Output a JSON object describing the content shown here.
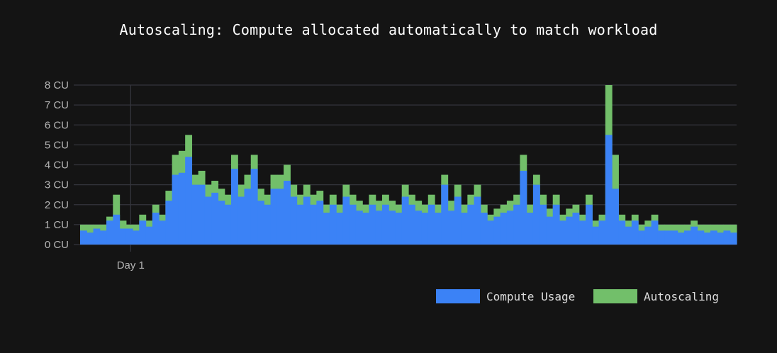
{
  "chart_data": {
    "type": "area",
    "title": "Autoscaling: Compute allocated automatically to match workload",
    "xlabel": "",
    "ylabel": "",
    "ylim": [
      0,
      8
    ],
    "y_ticks": [
      "0 CU",
      "1 CU",
      "2 CU",
      "3 CU",
      "4 CU",
      "5 CU",
      "6 CU",
      "7 CU",
      "8 CU"
    ],
    "x_ticks": [
      {
        "label": "Day 1",
        "index": 7
      }
    ],
    "grid": true,
    "legend_placement": "bottom-right",
    "series": [
      {
        "name": "Compute Usage",
        "color": "#3b82f6",
        "values": [
          0.7,
          0.6,
          0.8,
          0.7,
          1.2,
          1.5,
          0.8,
          0.8,
          0.7,
          1.2,
          0.9,
          1.6,
          1.2,
          2.2,
          3.5,
          3.6,
          4.4,
          3,
          3,
          2.4,
          2.6,
          2.2,
          2,
          3.8,
          2.4,
          2.8,
          3.8,
          2.2,
          2,
          2.8,
          2.8,
          3.2,
          2.4,
          2,
          2.4,
          2,
          2.2,
          1.6,
          2,
          1.6,
          2.4,
          2,
          1.7,
          1.6,
          2,
          1.7,
          2,
          1.7,
          1.6,
          2.4,
          2,
          1.7,
          1.6,
          2,
          1.6,
          3,
          1.7,
          2.4,
          1.6,
          2,
          2.4,
          1.6,
          1.2,
          1.4,
          1.6,
          1.7,
          2,
          3.7,
          1.6,
          3,
          2,
          1.4,
          2,
          1.2,
          1.4,
          1.6,
          1.2,
          2,
          0.9,
          1.2,
          5.5,
          2.8,
          1.2,
          0.9,
          1.2,
          0.7,
          0.9,
          1.2,
          0.7,
          0.7,
          0.7,
          0.6,
          0.7,
          0.9,
          0.7,
          0.6,
          0.7,
          0.6,
          0.7,
          0.6
        ]
      },
      {
        "name": "Autoscaling",
        "color": "#72bf6a",
        "values": [
          1,
          1,
          1,
          1,
          1.4,
          2.5,
          1.2,
          1,
          1,
          1.5,
          1.2,
          2,
          1.5,
          2.7,
          4.5,
          4.7,
          5.5,
          3.5,
          3.7,
          3,
          3.2,
          2.8,
          2.5,
          4.5,
          3,
          3.5,
          4.5,
          2.8,
          2.5,
          3.5,
          3.5,
          4,
          3,
          2.5,
          3,
          2.5,
          2.7,
          2,
          2.5,
          2,
          3,
          2.5,
          2.2,
          2,
          2.5,
          2.2,
          2.5,
          2.2,
          2,
          3,
          2.5,
          2.2,
          2,
          2.5,
          2,
          3.5,
          2.2,
          3,
          2,
          2.5,
          3,
          2,
          1.5,
          1.8,
          2,
          2.2,
          2.5,
          4.5,
          2,
          3.5,
          2.5,
          1.8,
          2.5,
          1.5,
          1.8,
          2,
          1.5,
          2.5,
          1.2,
          1.5,
          8,
          4.5,
          1.5,
          1.2,
          1.5,
          1,
          1.2,
          1.5,
          1,
          1,
          1,
          1,
          1,
          1.2,
          1,
          1,
          1,
          1,
          1,
          1
        ]
      }
    ]
  }
}
